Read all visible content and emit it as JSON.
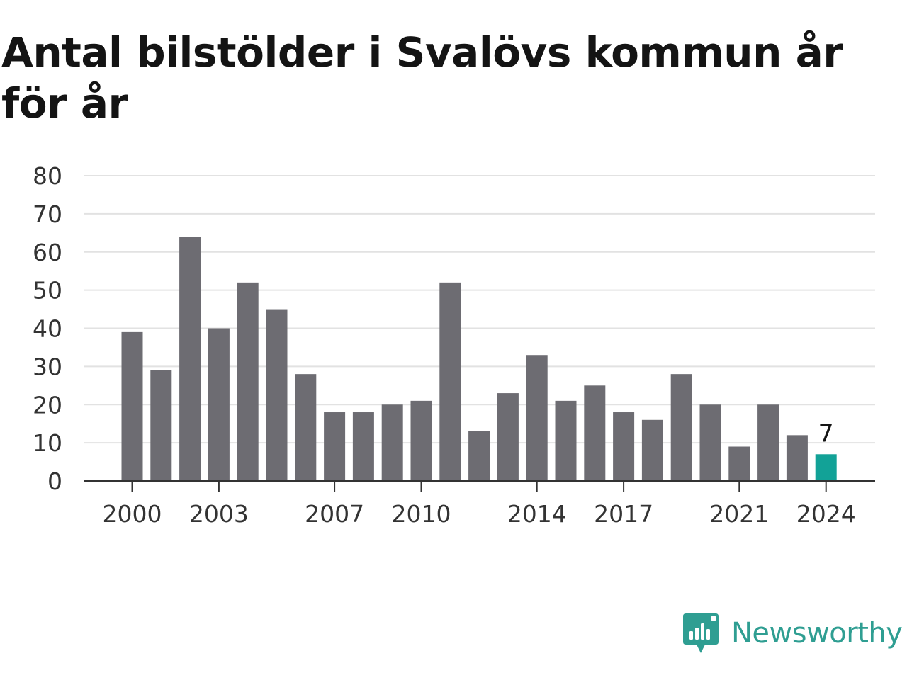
{
  "chart_data": {
    "type": "bar",
    "title": "Antal bilstölder i Svalövs kommun år för år",
    "xlabel": "",
    "ylabel": "",
    "ylim": [
      0,
      80
    ],
    "yticks": [
      "0",
      "10",
      "20",
      "30",
      "40",
      "50",
      "60",
      "70",
      "80"
    ],
    "categories": [
      "2000",
      "2001",
      "2002",
      "2003",
      "2004",
      "2005",
      "2006",
      "2007",
      "2008",
      "2009",
      "2010",
      "2011",
      "2012",
      "2013",
      "2014",
      "2015",
      "2016",
      "2017",
      "2018",
      "2019",
      "2020",
      "2021",
      "2022",
      "2023",
      "2024"
    ],
    "values": [
      39,
      29,
      64,
      40,
      52,
      45,
      28,
      18,
      18,
      20,
      21,
      52,
      13,
      23,
      33,
      21,
      25,
      18,
      16,
      28,
      20,
      9,
      20,
      12,
      7
    ],
    "xtick_labels": [
      "2000",
      "2003",
      "2007",
      "2010",
      "2014",
      "2017",
      "2021",
      "2024"
    ],
    "highlight": {
      "category": "2024",
      "label": "7"
    },
    "grid": true,
    "colors": {
      "bar": "#6d6c72",
      "highlight": "#12a297",
      "grid": "#e2e2e2",
      "axis": "#333333",
      "text": "#333333"
    }
  },
  "brand": {
    "name": "Newsworthy",
    "icon": "newsworthy-logo-icon",
    "color": "#2f9e92"
  }
}
